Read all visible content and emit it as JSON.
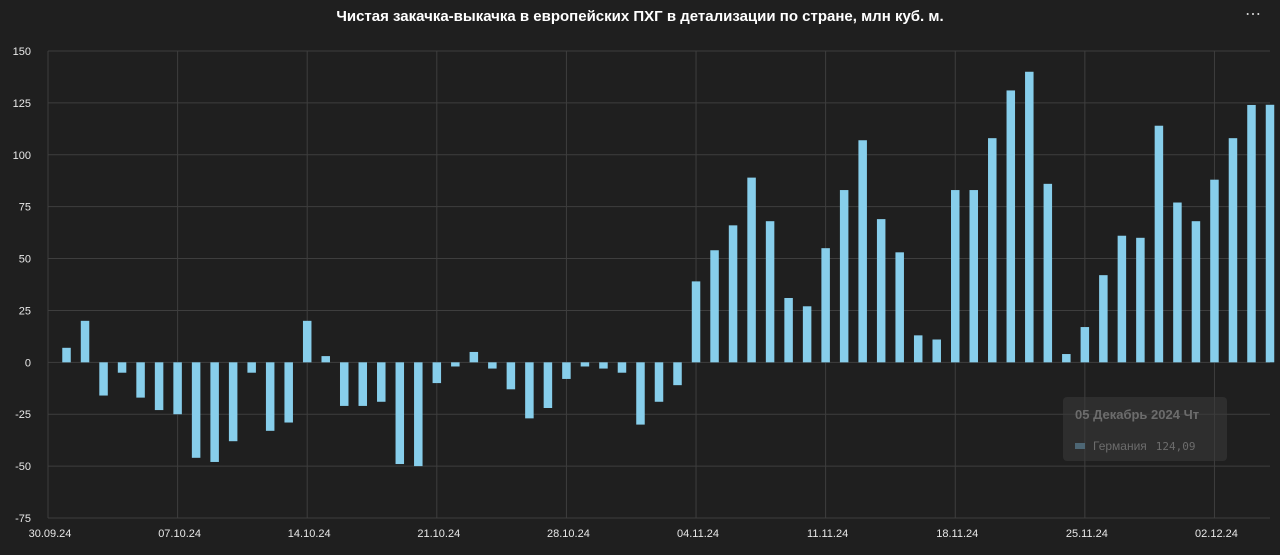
{
  "chart_data": {
    "type": "bar",
    "title": "Чистая закачка-выкачка в европейских ПХГ в детализации по стране, млн куб. м.",
    "ylim": [
      -75,
      150
    ],
    "yticks": [
      150,
      125,
      100,
      75,
      50,
      25,
      0,
      -25,
      -50,
      -75
    ],
    "xtick_labels": [
      "30.09.24",
      "07.10.24",
      "14.10.24",
      "21.10.24",
      "28.10.24",
      "04.11.24",
      "11.11.24",
      "18.11.24",
      "25.11.24",
      "02.12.24"
    ],
    "grid": true,
    "bar_color": "#87ceeb",
    "series": [
      {
        "name": "Германия",
        "values": [
          7,
          20,
          -16,
          -5,
          -17,
          -23,
          -25,
          -46,
          -48,
          -38,
          -5,
          -33,
          -29,
          20,
          3,
          -21,
          -21,
          -19,
          -49,
          -50,
          -10,
          -2,
          5,
          -3,
          -13,
          -27,
          -22,
          -8,
          -2,
          -3,
          -5,
          -30,
          -19,
          -11,
          39,
          54,
          66,
          89,
          68,
          31,
          27,
          55,
          83,
          107,
          69,
          53,
          13,
          11,
          83,
          83,
          108,
          131,
          140,
          86,
          4,
          17,
          42,
          61,
          60,
          114,
          77,
          68,
          88,
          108,
          124,
          124.09
        ]
      }
    ]
  },
  "tooltip": {
    "date": "05 Декабрь 2024 Чт",
    "series_name": "Германия",
    "value": "124,09",
    "swatch_color": "#4d6674"
  },
  "menu_icon": "more-horizontal-icon"
}
